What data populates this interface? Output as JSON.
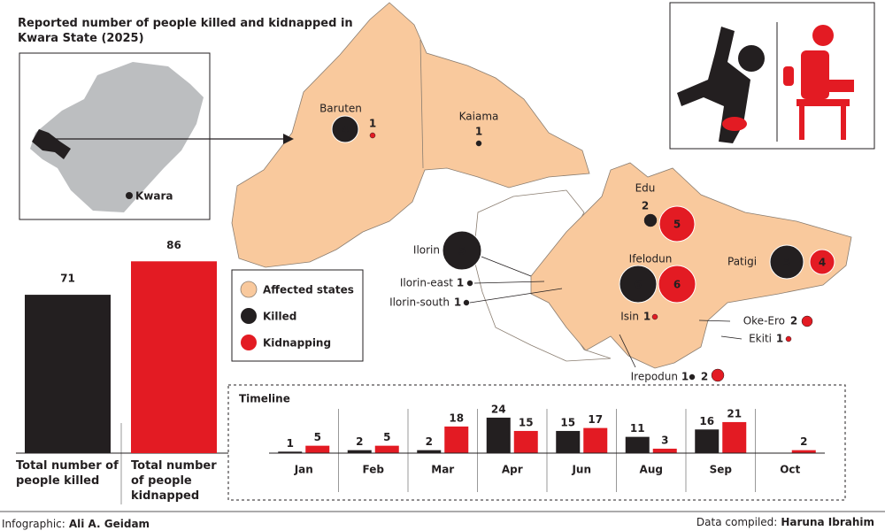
{
  "title": "Reported number of people killed and kidnapped in Kwara State (2025)",
  "chart_data": [
    {
      "type": "bar",
      "categories": [
        "Total number of people killed",
        "Total number of people kidnapped"
      ],
      "values": [
        71,
        86
      ],
      "colors": [
        "#231f20",
        "#e31b23"
      ]
    },
    {
      "type": "grouped-bar",
      "title": "Timeline",
      "categories": [
        "Jan",
        "Feb",
        "Mar",
        "Apr",
        "Jun",
        "Aug",
        "Sep",
        "Oct"
      ],
      "series": [
        {
          "name": "Killed",
          "color": "#231f20",
          "values": [
            1,
            2,
            2,
            24,
            15,
            11,
            16,
            null
          ]
        },
        {
          "name": "Kidnapping",
          "color": "#e31b23",
          "values": [
            5,
            5,
            18,
            15,
            17,
            3,
            21,
            2
          ]
        }
      ]
    }
  ],
  "map": {
    "area_label": "Affected states",
    "area_color": "#f9c99d",
    "inset_label": "Kwara",
    "regions": [
      {
        "name": "Baruten",
        "killed": 4,
        "kidnapped": 1
      },
      {
        "name": "Kaiama",
        "killed": 1,
        "kidnapped": null
      },
      {
        "name": "Edu",
        "killed": 2,
        "kidnapped": 5
      },
      {
        "name": "Ilorin",
        "killed": 5,
        "kidnapped": null
      },
      {
        "name": "Ifelodun",
        "killed": 6,
        "kidnapped": 6
      },
      {
        "name": "Patigi",
        "killed": 5,
        "kidnapped": 4
      },
      {
        "name": "Ilorin-east",
        "killed": 1,
        "kidnapped": null
      },
      {
        "name": "Ilorin-south",
        "killed": 1,
        "kidnapped": null
      },
      {
        "name": "Isin",
        "killed": null,
        "kidnapped": 1
      },
      {
        "name": "Oke-Ero",
        "killed": null,
        "kidnapped": 2
      },
      {
        "name": "Ekiti",
        "killed": null,
        "kidnapped": 1
      },
      {
        "name": "Irepodun",
        "killed": 1,
        "kidnapped": 2
      }
    ]
  },
  "credits": {
    "infographic_label": "Infographic:",
    "infographic_by": "Ali A. Geidam",
    "data_label": "Data compiled:",
    "data_by": "Haruna Ibrahim"
  }
}
